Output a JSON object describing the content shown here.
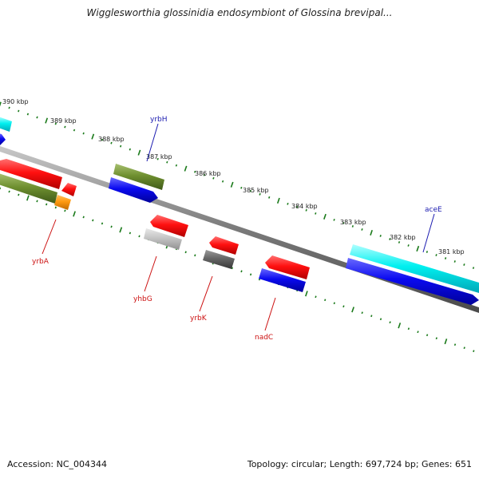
{
  "title": "Wigglesworthia glossinidia endosymbiont of Glossina brevipal...",
  "footer": {
    "accession": "Accession: NC_004344",
    "topology": "Topology: circular; Length: 697,724 bp; Genes: 651"
  },
  "colors": {
    "backbone": "#808080",
    "tick": "#1a7a1a",
    "forward_label": "#1b1bb0",
    "reverse_label": "#cc1111"
  },
  "scale_labels": [
    "390 kbp",
    "389 kbp",
    "388 kbp",
    "387 kbp",
    "386 kbp",
    "385 kbp",
    "384 kbp",
    "383 kbp",
    "382 kbp",
    "381 kbp"
  ],
  "gene_labels": [
    {
      "text": "yrbH",
      "strand": "forward"
    },
    {
      "text": "aceE",
      "strand": "forward"
    },
    {
      "text": "yrbA",
      "strand": "reverse"
    },
    {
      "text": "yhbG",
      "strand": "reverse"
    },
    {
      "text": "yrbK",
      "strand": "reverse"
    },
    {
      "text": "nadC",
      "strand": "reverse"
    }
  ]
}
